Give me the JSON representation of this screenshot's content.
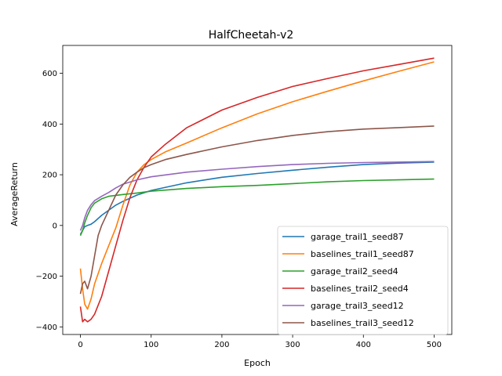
{
  "chart_data": {
    "type": "line",
    "title": "HalfCheetah-v2",
    "xlabel": "Epoch",
    "ylabel": "AverageReturn",
    "xlim": [
      -25,
      525
    ],
    "ylim": [
      -430,
      710
    ],
    "xticks": [
      0,
      100,
      200,
      300,
      400,
      500
    ],
    "yticks": [
      -400,
      -200,
      0,
      200,
      400,
      600
    ],
    "grid": false,
    "legend_position": "lower-right",
    "series": [
      {
        "name": "garage_trail1_seed87",
        "color": "#1f77b4",
        "points": [
          [
            0,
            -35
          ],
          [
            3,
            -20
          ],
          [
            6,
            -5
          ],
          [
            10,
            0
          ],
          [
            15,
            5
          ],
          [
            20,
            15
          ],
          [
            30,
            40
          ],
          [
            40,
            60
          ],
          [
            50,
            80
          ],
          [
            60,
            95
          ],
          [
            80,
            120
          ],
          [
            100,
            138
          ],
          [
            150,
            168
          ],
          [
            200,
            190
          ],
          [
            250,
            205
          ],
          [
            300,
            218
          ],
          [
            350,
            230
          ],
          [
            400,
            240
          ],
          [
            450,
            246
          ],
          [
            500,
            250
          ]
        ]
      },
      {
        "name": "baselines_trail1_seed87",
        "color": "#ff7f0e",
        "points": [
          [
            0,
            -170
          ],
          [
            3,
            -250
          ],
          [
            6,
            -310
          ],
          [
            10,
            -330
          ],
          [
            15,
            -290
          ],
          [
            20,
            -230
          ],
          [
            30,
            -150
          ],
          [
            40,
            -80
          ],
          [
            50,
            -10
          ],
          [
            60,
            80
          ],
          [
            70,
            160
          ],
          [
            80,
            210
          ],
          [
            90,
            240
          ],
          [
            100,
            260
          ],
          [
            120,
            290
          ],
          [
            150,
            325
          ],
          [
            200,
            385
          ],
          [
            250,
            440
          ],
          [
            300,
            488
          ],
          [
            350,
            530
          ],
          [
            400,
            570
          ],
          [
            450,
            608
          ],
          [
            500,
            645
          ]
        ]
      },
      {
        "name": "garage_trail2_seed4",
        "color": "#2ca02c",
        "points": [
          [
            0,
            -40
          ],
          [
            3,
            -20
          ],
          [
            6,
            10
          ],
          [
            10,
            40
          ],
          [
            15,
            70
          ],
          [
            20,
            88
          ],
          [
            30,
            105
          ],
          [
            40,
            115
          ],
          [
            60,
            122
          ],
          [
            80,
            128
          ],
          [
            100,
            135
          ],
          [
            150,
            146
          ],
          [
            200,
            153
          ],
          [
            250,
            158
          ],
          [
            300,
            165
          ],
          [
            350,
            172
          ],
          [
            400,
            177
          ],
          [
            450,
            180
          ],
          [
            500,
            183
          ]
        ]
      },
      {
        "name": "baselines_trail2_seed4",
        "color": "#d62728",
        "points": [
          [
            0,
            -320
          ],
          [
            3,
            -380
          ],
          [
            6,
            -370
          ],
          [
            10,
            -380
          ],
          [
            15,
            -370
          ],
          [
            20,
            -350
          ],
          [
            30,
            -280
          ],
          [
            40,
            -180
          ],
          [
            50,
            -80
          ],
          [
            60,
            20
          ],
          [
            70,
            110
          ],
          [
            80,
            180
          ],
          [
            90,
            230
          ],
          [
            100,
            270
          ],
          [
            120,
            320
          ],
          [
            150,
            385
          ],
          [
            200,
            455
          ],
          [
            250,
            505
          ],
          [
            300,
            548
          ],
          [
            350,
            580
          ],
          [
            400,
            610
          ],
          [
            450,
            635
          ],
          [
            500,
            660
          ]
        ]
      },
      {
        "name": "garage_trail3_seed12",
        "color": "#9467bd",
        "points": [
          [
            0,
            -20
          ],
          [
            3,
            0
          ],
          [
            6,
            30
          ],
          [
            10,
            60
          ],
          [
            15,
            82
          ],
          [
            20,
            98
          ],
          [
            30,
            115
          ],
          [
            40,
            130
          ],
          [
            50,
            148
          ],
          [
            60,
            163
          ],
          [
            80,
            180
          ],
          [
            100,
            192
          ],
          [
            150,
            210
          ],
          [
            200,
            222
          ],
          [
            250,
            232
          ],
          [
            300,
            240
          ],
          [
            350,
            245
          ],
          [
            400,
            248
          ],
          [
            450,
            250
          ],
          [
            500,
            252
          ]
        ]
      },
      {
        "name": "baselines_trail3_seed12",
        "color": "#8c564b",
        "points": [
          [
            0,
            -270
          ],
          [
            3,
            -230
          ],
          [
            6,
            -220
          ],
          [
            10,
            -250
          ],
          [
            15,
            -200
          ],
          [
            20,
            -120
          ],
          [
            25,
            -40
          ],
          [
            30,
            0
          ],
          [
            40,
            60
          ],
          [
            50,
            120
          ],
          [
            60,
            160
          ],
          [
            70,
            190
          ],
          [
            80,
            210
          ],
          [
            90,
            228
          ],
          [
            100,
            240
          ],
          [
            120,
            260
          ],
          [
            150,
            280
          ],
          [
            200,
            310
          ],
          [
            250,
            335
          ],
          [
            300,
            355
          ],
          [
            350,
            370
          ],
          [
            400,
            380
          ],
          [
            450,
            386
          ],
          [
            500,
            392
          ]
        ]
      }
    ]
  }
}
